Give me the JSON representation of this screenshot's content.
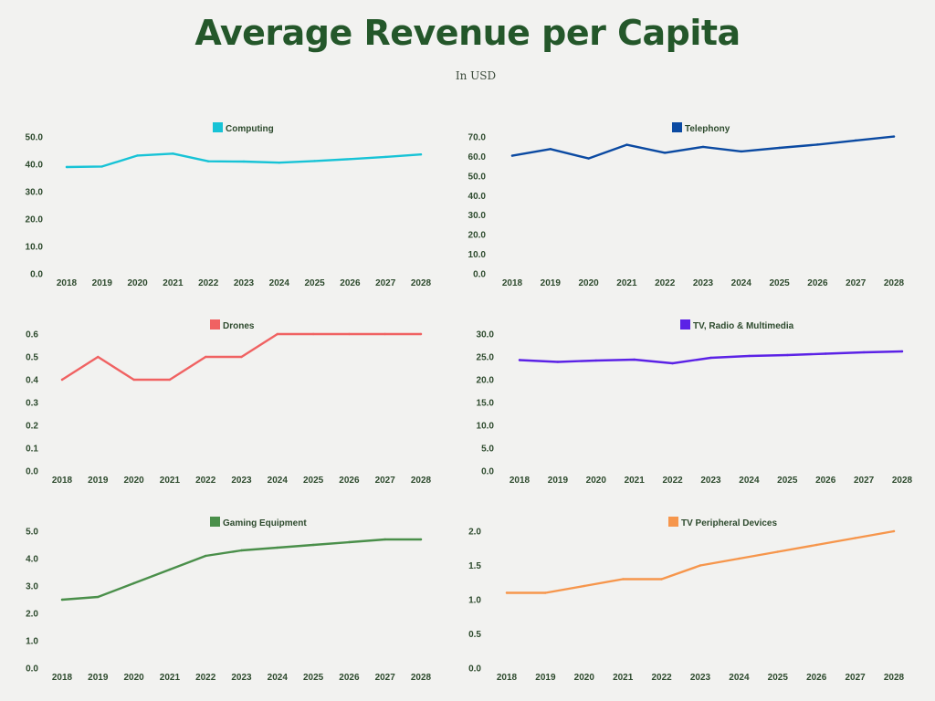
{
  "header": {
    "title": "Average Revenue per Capita",
    "subtitle": "In USD"
  },
  "chart_data": [
    {
      "type": "line",
      "series": [
        {
          "name": "Computing",
          "values": [
            39.0,
            39.2,
            43.2,
            43.9,
            41.1,
            41.0,
            40.6,
            41.2,
            41.9,
            42.7,
            43.6
          ],
          "color": "#17c3d6"
        }
      ],
      "x": [
        "2018",
        "2019",
        "2020",
        "2021",
        "2022",
        "2023",
        "2024",
        "2025",
        "2026",
        "2027",
        "2028"
      ],
      "yticks": [
        "0.0",
        "10.0",
        "20.0",
        "30.0",
        "40.0",
        "50.0"
      ],
      "ylim": [
        0,
        50
      ],
      "legend": "top-center",
      "grid": false
    },
    {
      "type": "line",
      "series": [
        {
          "name": "Telephony",
          "values": [
            60.4,
            63.8,
            59.0,
            66.0,
            61.9,
            64.9,
            62.6,
            64.4,
            66.1,
            68.2,
            70.2
          ],
          "color": "#0b4aa2"
        }
      ],
      "x": [
        "2018",
        "2019",
        "2020",
        "2021",
        "2022",
        "2023",
        "2024",
        "2025",
        "2026",
        "2027",
        "2028"
      ],
      "yticks": [
        "0.0",
        "10.0",
        "20.0",
        "30.0",
        "40.0",
        "50.0",
        "60.0",
        "70.0"
      ],
      "ylim": [
        0,
        70
      ],
      "legend": "top-center",
      "grid": false
    },
    {
      "type": "line",
      "series": [
        {
          "name": "Drones",
          "values": [
            0.4,
            0.5,
            0.4,
            0.4,
            0.5,
            0.5,
            0.6,
            0.6,
            0.6,
            0.6,
            0.6
          ],
          "color": "#f06262"
        }
      ],
      "x": [
        "2018",
        "2019",
        "2020",
        "2021",
        "2022",
        "2023",
        "2024",
        "2025",
        "2026",
        "2027",
        "2028"
      ],
      "yticks": [
        "0.0",
        "0.1",
        "0.2",
        "0.3",
        "0.4",
        "0.5",
        "0.6"
      ],
      "ylim": [
        0,
        0.6
      ],
      "legend": "top-center",
      "grid": false
    },
    {
      "type": "line",
      "series": [
        {
          "name": "TV, Radio & Multimedia",
          "values": [
            24.3,
            23.9,
            24.2,
            24.4,
            23.6,
            24.8,
            25.2,
            25.4,
            25.7,
            26.0,
            26.2
          ],
          "color": "#5b22e6"
        }
      ],
      "x": [
        "2018",
        "2019",
        "2020",
        "2021",
        "2022",
        "2023",
        "2024",
        "2025",
        "2026",
        "2027",
        "2028"
      ],
      "yticks": [
        "0.0",
        "5.0",
        "10.0",
        "15.0",
        "20.0",
        "25.0",
        "30.0"
      ],
      "ylim": [
        0,
        30
      ],
      "legend": "top-center",
      "grid": false
    },
    {
      "type": "line",
      "series": [
        {
          "name": "Gaming Equipment",
          "values": [
            2.5,
            2.6,
            3.1,
            3.6,
            4.1,
            4.3,
            4.4,
            4.5,
            4.6,
            4.7,
            4.7
          ],
          "color": "#4a8f4a"
        }
      ],
      "x": [
        "2018",
        "2019",
        "2020",
        "2021",
        "2022",
        "2023",
        "2024",
        "2025",
        "2026",
        "2027",
        "2028"
      ],
      "yticks": [
        "0.0",
        "1.0",
        "2.0",
        "3.0",
        "4.0",
        "5.0"
      ],
      "ylim": [
        0,
        5
      ],
      "legend": "top-center",
      "grid": false
    },
    {
      "type": "line",
      "series": [
        {
          "name": "TV Peripheral Devices",
          "values": [
            1.1,
            1.1,
            1.2,
            1.3,
            1.3,
            1.5,
            1.6,
            1.7,
            1.8,
            1.9,
            2.0
          ],
          "color": "#f6964c"
        }
      ],
      "x": [
        "2018",
        "2019",
        "2020",
        "2021",
        "2022",
        "2023",
        "2024",
        "2025",
        "2026",
        "2027",
        "2028"
      ],
      "yticks": [
        "0.0",
        "0.5",
        "1.0",
        "1.5",
        "2.0"
      ],
      "ylim": [
        0,
        2
      ],
      "legend": "top-center",
      "grid": false
    }
  ]
}
